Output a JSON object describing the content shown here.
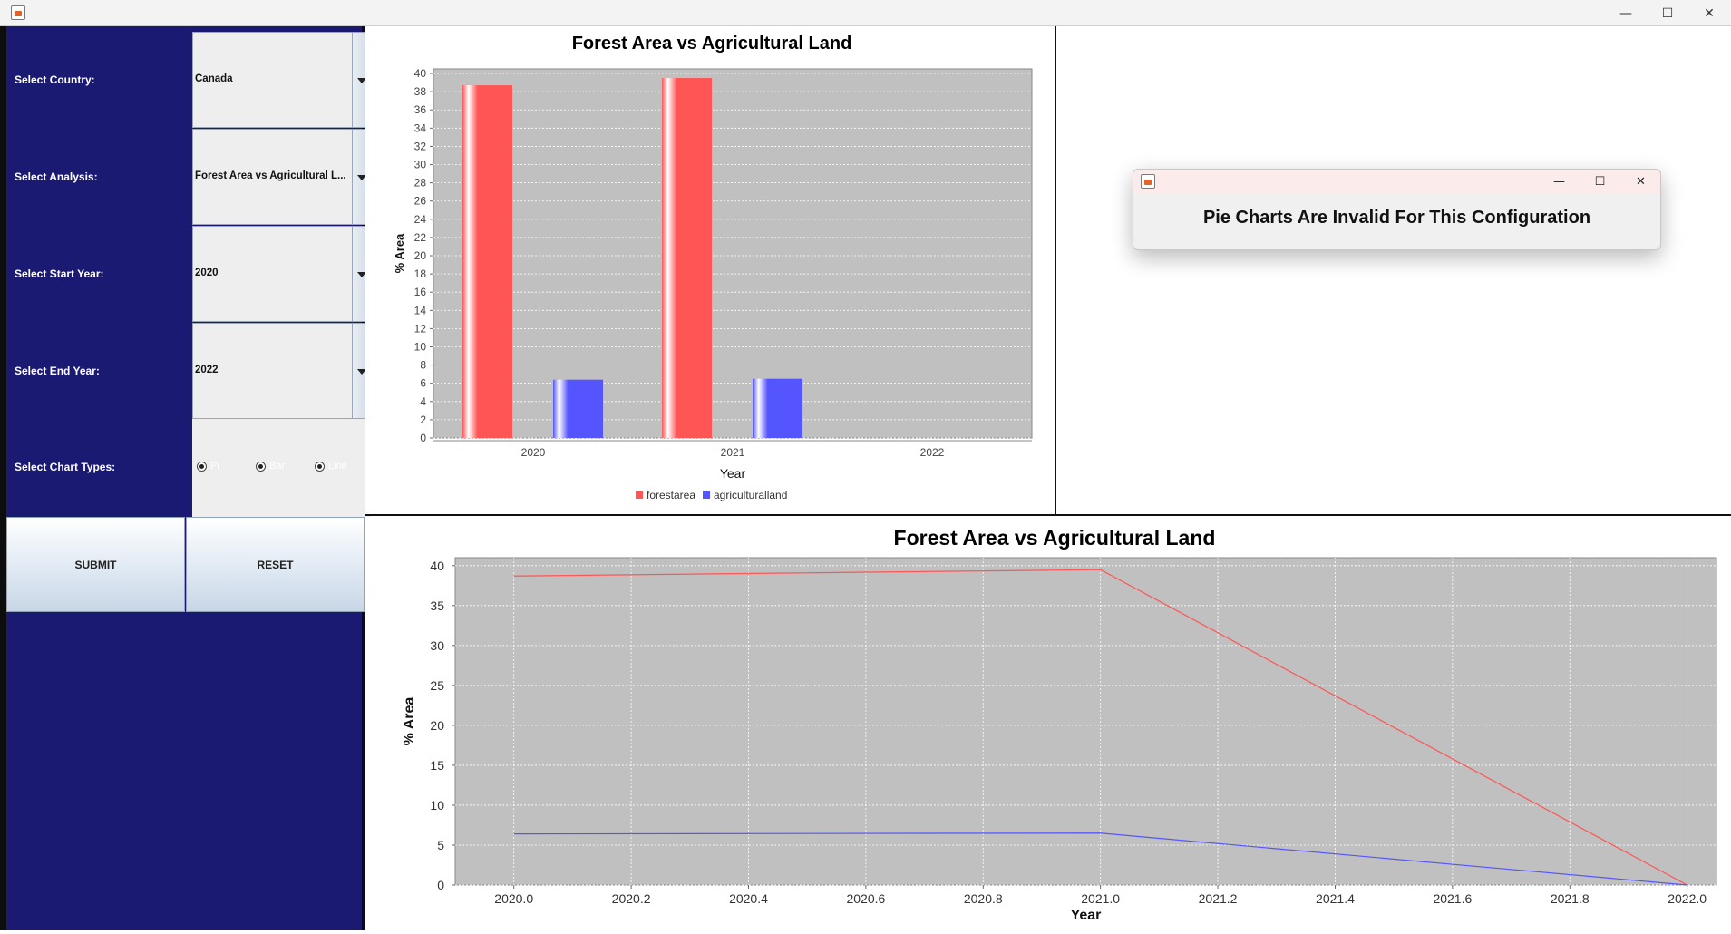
{
  "window": {
    "controls": {
      "minimize": "—",
      "maximize": "☐",
      "close": "✕"
    }
  },
  "form": {
    "country_label": "Select Country:",
    "country_value": "Canada",
    "analysis_label": "Select Analysis:",
    "analysis_value": "Forest Area vs Agricultural L...",
    "start_year_label": "Select Start Year:",
    "start_year_value": "2020",
    "end_year_label": "Select End Year:",
    "end_year_value": "2022",
    "chart_types_label": "Select Chart Types:",
    "chart_types": [
      "Pi",
      "Bar",
      "Line"
    ],
    "submit_label": "SUBMIT",
    "reset_label": "RESET"
  },
  "dialog": {
    "message": "Pie Charts Are Invalid For This Configuration",
    "controls": {
      "minimize": "—",
      "maximize": "☐",
      "close": "✕"
    }
  },
  "colors": {
    "forestarea": "#ff5555",
    "agriculturalland": "#5555ff",
    "plot_bg": "#c0c0c0",
    "panel": "#1b1a73"
  },
  "chart_data": [
    {
      "type": "bar",
      "title": "Forest Area vs Agricultural Land",
      "xlabel": "Year",
      "ylabel": "% Area",
      "categories": [
        "2020",
        "2021",
        "2022"
      ],
      "series": [
        {
          "name": "forestarea",
          "values": [
            38.7,
            39.5,
            null
          ]
        },
        {
          "name": "agriculturalland",
          "values": [
            6.4,
            6.5,
            null
          ]
        }
      ],
      "ylim": [
        0,
        40.5
      ],
      "yticks": [
        0,
        2,
        4,
        6,
        8,
        10,
        12,
        14,
        16,
        18,
        20,
        22,
        24,
        26,
        28,
        30,
        32,
        34,
        36,
        38,
        40
      ],
      "legend": "bottom",
      "grid": true
    },
    {
      "type": "line",
      "title": "Forest Area vs Agricultural Land",
      "xlabel": "Year",
      "ylabel": "% Area",
      "xlim": [
        2019.9,
        2022.05
      ],
      "ylim": [
        0,
        41
      ],
      "xticks": [
        "2020.0",
        "2020.2",
        "2020.4",
        "2020.6",
        "2020.8",
        "2021.0",
        "2021.2",
        "2021.4",
        "2021.6",
        "2021.8",
        "2022.0"
      ],
      "yticks": [
        0,
        5,
        10,
        15,
        20,
        25,
        30,
        35,
        40
      ],
      "series": [
        {
          "x": [
            2020,
            2021,
            2022
          ],
          "y": [
            38.7,
            39.5,
            0
          ]
        },
        {
          "x": [
            2020,
            2021,
            2022
          ],
          "y": [
            6.4,
            6.5,
            0
          ]
        }
      ],
      "grid": true
    }
  ]
}
